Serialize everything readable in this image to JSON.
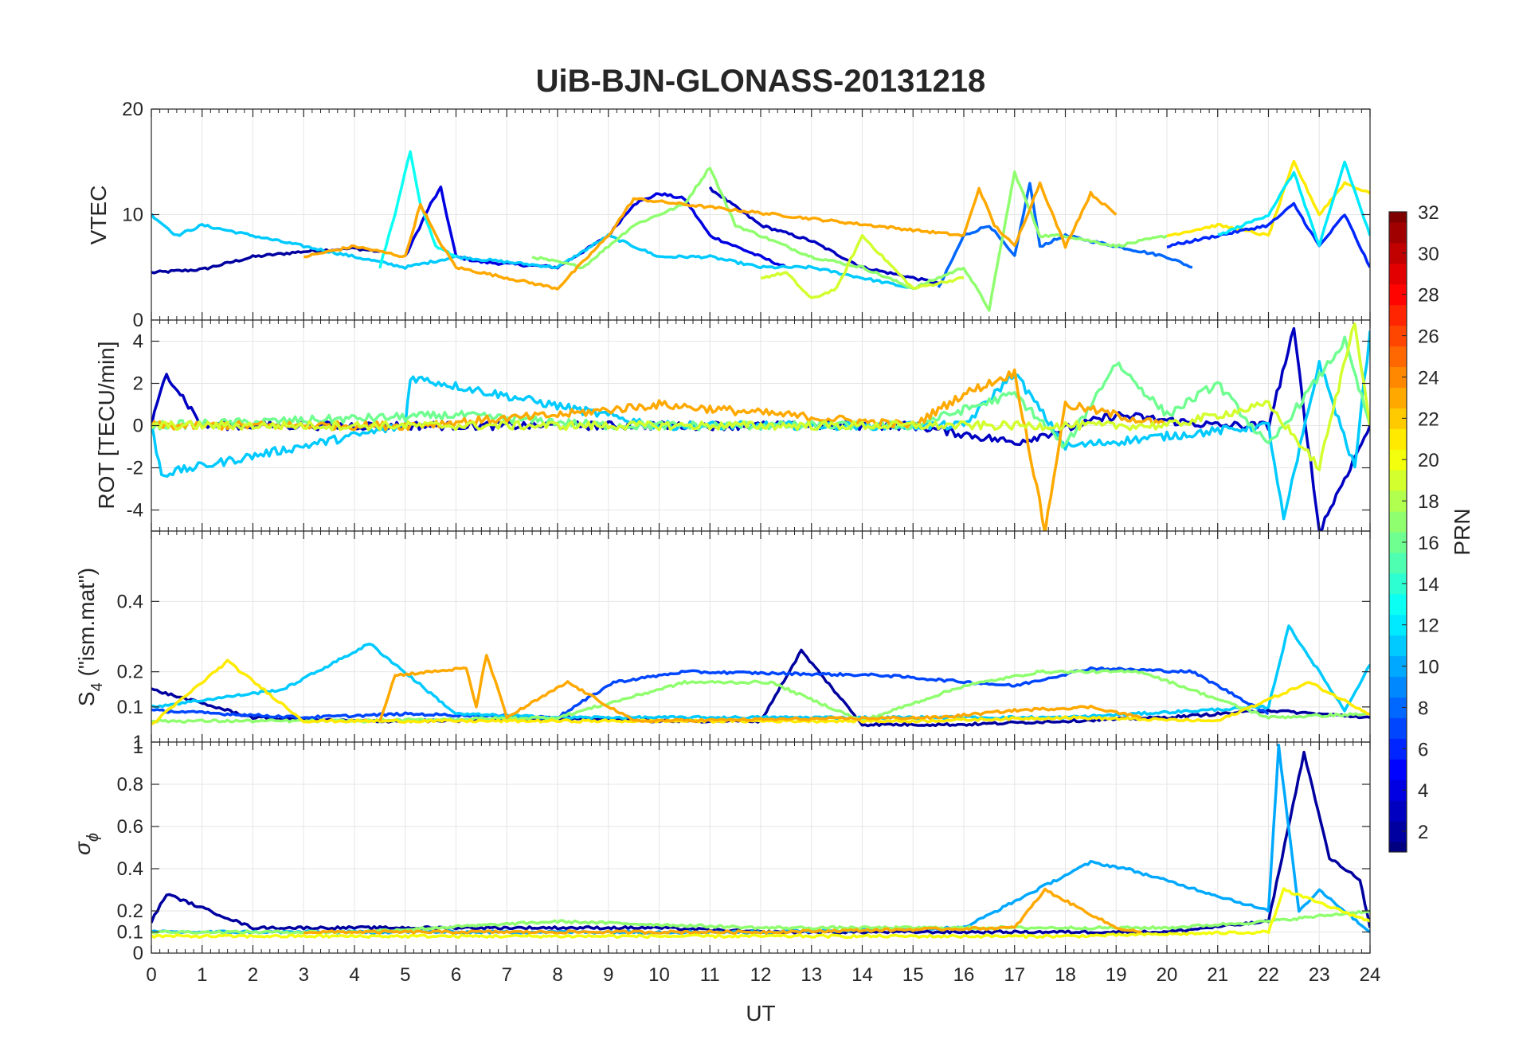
{
  "title": "UiB-BJN-GLONASS-20131218",
  "xlabel": "UT",
  "x_ticks": [
    "0",
    "1",
    "2",
    "3",
    "4",
    "5",
    "6",
    "7",
    "8",
    "9",
    "10",
    "11",
    "12",
    "13",
    "14",
    "15",
    "16",
    "17",
    "18",
    "19",
    "20",
    "21",
    "22",
    "23",
    "24"
  ],
  "panels": [
    {
      "ylabel": "VTEC",
      "yticks": [
        "0",
        "10",
        "20"
      ]
    },
    {
      "ylabel": "ROT [TECU/min]",
      "yticks": [
        "-4",
        "-2",
        "0",
        "2",
        "4"
      ]
    },
    {
      "ylabel_main": "S",
      "ylabel_sub": "4",
      "ylabel_rest": " (\"ism.mat\")",
      "yticks": [
        "0.1",
        "0.2",
        "0.4",
        "1"
      ]
    },
    {
      "ylabel_main": "σ",
      "ylabel_sub": "ϕ",
      "yticks": [
        "0",
        "0.1",
        "0.2",
        "0.4",
        "0.6",
        "0.8",
        "1"
      ]
    }
  ],
  "colorbar": {
    "label": "PRN",
    "ticks": [
      "2",
      "4",
      "6",
      "8",
      "10",
      "12",
      "14",
      "16",
      "18",
      "20",
      "22",
      "24",
      "26",
      "28",
      "30",
      "32"
    ]
  },
  "chart_data": {
    "type": "line",
    "title": "UiB-BJN-GLONASS-20131218",
    "xlabel": "UT",
    "xlim": [
      0,
      24
    ],
    "colorbar": {
      "label": "PRN",
      "range": [
        1,
        32
      ],
      "colormap": "jet"
    },
    "panels": [
      {
        "ylabel": "VTEC",
        "ylim": [
          0,
          20
        ],
        "series": [
          {
            "prn": 2,
            "x": [
              0,
              1,
              2,
              3,
              4,
              4.5
            ],
            "y": [
              4.5,
              4.8,
              6,
              6.5,
              6.8,
              6.5
            ]
          },
          {
            "prn": 4,
            "x": [
              5.0,
              5.5,
              5.7,
              6.0,
              6.5,
              8.0,
              9.0,
              9.5,
              10.0,
              10.5,
              11.0,
              12.0,
              12.5
            ],
            "y": [
              6,
              11,
              12.5,
              6,
              5.5,
              5,
              8,
              11,
              12,
              11.5,
              8,
              6,
              5
            ]
          },
          {
            "prn": 3,
            "x": [
              11.0,
              12.0,
              13.0,
              14.0,
              15.0,
              15.5
            ],
            "y": [
              12.5,
              9,
              7.5,
              5,
              4,
              3.5
            ]
          },
          {
            "prn": 8,
            "x": [
              15.5,
              16.0,
              16.5,
              17.0,
              17.3,
              17.5,
              18.0,
              19.0,
              20.0,
              20.5
            ],
            "y": [
              3,
              8,
              9,
              6,
              13,
              7,
              8,
              7,
              6,
              5
            ]
          },
          {
            "prn": 11,
            "x": [
              0,
              0.5,
              1,
              2,
              3,
              4,
              5,
              6,
              7,
              8,
              9,
              10,
              11,
              12,
              13,
              14,
              15
            ],
            "y": [
              10,
              8,
              9,
              8,
              7,
              6,
              5,
              6,
              5.5,
              5,
              8,
              6,
              6,
              5,
              5,
              4,
              3
            ]
          },
          {
            "prn": 13,
            "x": [
              4.5,
              4.8,
              5.1,
              5.3,
              5.6,
              6.0
            ],
            "y": [
              5,
              10,
              16,
              11,
              7,
              6
            ]
          },
          {
            "prn": 17,
            "x": [
              7.5,
              8.5,
              9.5,
              10.5,
              11.0,
              11.5,
              12.0,
              13.0,
              14.0,
              15.0,
              16.0,
              16.5,
              17.0,
              17.5,
              18.0,
              19.0,
              20.0
            ],
            "y": [
              6,
              5,
              9,
              11,
              14.5,
              9,
              8,
              6,
              5,
              3,
              5,
              1,
              14,
              8,
              8,
              7,
              8
            ]
          },
          {
            "prn": 19,
            "x": [
              12.0,
              12.5,
              13.0,
              13.5,
              14.0,
              15.0,
              16.0
            ],
            "y": [
              4,
              4.5,
              2,
              3,
              8,
              3,
              4
            ]
          },
          {
            "prn": 23,
            "x": [
              3,
              4,
              5,
              5.3,
              5.6,
              6,
              7,
              8,
              9,
              9.5,
              16.0,
              16.3,
              16.6,
              17.0,
              17.5,
              18.0,
              18.5,
              19.0
            ],
            "y": [
              6,
              7,
              6,
              11,
              8,
              5,
              4,
              3,
              8,
              11.5,
              8,
              12.5,
              9,
              7,
              13,
              7,
              12,
              10
            ]
          },
          {
            "prn": 21,
            "x": [
              20.0,
              21.0,
              22.0,
              22.5,
              23.0,
              23.5,
              24.0
            ],
            "y": [
              8,
              9,
              8,
              15,
              10,
              13,
              12
            ]
          },
          {
            "prn": 6,
            "x": [
              20.0,
              21.0,
              22.0,
              22.5,
              23.0,
              23.5,
              24.0
            ],
            "y": [
              7,
              8,
              9,
              11,
              7,
              10,
              5
            ]
          },
          {
            "prn": 12,
            "x": [
              21.0,
              22.0,
              22.5,
              23.0,
              23.5,
              24.0
            ],
            "y": [
              8,
              10,
              14,
              7,
              15,
              8
            ]
          }
        ]
      },
      {
        "ylabel": "ROT [TECU/min]",
        "ylim": [
          -5,
          5
        ],
        "series": [
          {
            "prn": 3,
            "x": [
              0,
              0.3,
              1,
              3,
              6,
              9,
              12,
              15,
              17,
              19,
              21,
              22,
              22.5,
              23,
              24
            ],
            "y": [
              0,
              2.5,
              0,
              0,
              0,
              0,
              0,
              0,
              -0.8,
              0.5,
              0,
              0,
              4.5,
              -5,
              0
            ]
          },
          {
            "prn": 11,
            "x": [
              0,
              0.2,
              5,
              5.1,
              10,
              16,
              17,
              18,
              22,
              22.3,
              23,
              23.7,
              24
            ],
            "y": [
              0,
              -2.3,
              0,
              2.3,
              0,
              0,
              2.5,
              -1,
              0,
              -4.5,
              3,
              -2,
              4.5
            ]
          },
          {
            "prn": 16,
            "x": [
              0,
              6,
              9,
              15,
              17,
              18,
              19,
              20,
              21,
              22,
              23.5,
              24
            ],
            "y": [
              0,
              0.5,
              0,
              0,
              1.5,
              -1,
              3,
              0.5,
              2,
              -1,
              4,
              0
            ]
          },
          {
            "prn": 23,
            "x": [
              0,
              5,
              8,
              10,
              15,
              16,
              17,
              17.6,
              18,
              19,
              20
            ],
            "y": [
              0,
              0,
              0.5,
              1,
              0,
              1.5,
              2.5,
              -5,
              1,
              0.5,
              0
            ]
          },
          {
            "prn": 19,
            "x": [
              0,
              5,
              10,
              15,
              20,
              22,
              23,
              23.7,
              24
            ],
            "y": [
              0,
              0,
              0,
              0,
              0,
              1,
              -2,
              5,
              0
            ]
          }
        ]
      },
      {
        "ylabel": "S4 (\"ism.mat\")",
        "ylim": [
          0,
          0.6
        ],
        "series": [
          {
            "prn": 2,
            "x": [
              0,
              2,
              4,
              6,
              8,
              10,
              12,
              12.8,
              14,
              16,
              18,
              20,
              22,
              24
            ],
            "y": [
              0.15,
              0.07,
              0.06,
              0.06,
              0.07,
              0.06,
              0.06,
              0.26,
              0.05,
              0.05,
              0.06,
              0.07,
              0.09,
              0.07
            ]
          },
          {
            "prn": 7,
            "x": [
              0,
              3,
              5,
              8,
              9.1,
              10.5,
              14.4,
              17,
              18.5,
              20.5,
              22
            ],
            "y": [
              0.09,
              0.07,
              0.08,
              0.07,
              0.17,
              0.2,
              0.19,
              0.16,
              0.21,
              0.2,
              0.08
            ]
          },
          {
            "prn": 11,
            "x": [
              0,
              2.6,
              4.3,
              6,
              8,
              12,
              16,
              18,
              22,
              22.4,
              23.5,
              24
            ],
            "y": [
              0.1,
              0.15,
              0.28,
              0.08,
              0.07,
              0.07,
              0.07,
              0.07,
              0.1,
              0.33,
              0.09,
              0.22
            ]
          },
          {
            "prn": 17,
            "x": [
              0,
              4,
              8,
              10.5,
              12.2,
              14,
              16,
              17.5,
              19.5,
              22,
              24
            ],
            "y": [
              0.06,
              0.06,
              0.07,
              0.17,
              0.17,
              0.06,
              0.16,
              0.2,
              0.2,
              0.07,
              0.08
            ]
          },
          {
            "prn": 21,
            "x": [
              0,
              1.5,
              3,
              6,
              9,
              12,
              15,
              18,
              21,
              22.8,
              24
            ],
            "y": [
              0.05,
              0.23,
              0.06,
              0.06,
              0.06,
              0.06,
              0.06,
              0.07,
              0.06,
              0.17,
              0.08
            ]
          },
          {
            "prn": 23,
            "x": [
              4.5,
              4.8,
              6.2,
              6.4,
              6.6,
              7.0,
              8.2,
              9.5,
              15.5,
              17,
              18.5,
              19.5
            ],
            "y": [
              0.06,
              0.19,
              0.21,
              0.1,
              0.25,
              0.07,
              0.17,
              0.06,
              0.07,
              0.09,
              0.1,
              0.07
            ]
          }
        ]
      },
      {
        "ylabel": "σφ",
        "ylim": [
          0,
          1
        ],
        "series": [
          {
            "prn": 2,
            "x": [
              0,
              0.3,
              2,
              4,
              6,
              8,
              10,
              12,
              14,
              16,
              18,
              20,
              22,
              22.7,
              23.2,
              23.8,
              24
            ],
            "y": [
              0.15,
              0.28,
              0.12,
              0.12,
              0.12,
              0.12,
              0.12,
              0.1,
              0.1,
              0.1,
              0.1,
              0.1,
              0.15,
              0.95,
              0.45,
              0.35,
              0.12
            ]
          },
          {
            "prn": 10,
            "x": [
              0,
              4,
              8,
              12,
              16,
              17.6,
              18.5,
              19.2,
              22,
              22.2,
              22.6,
              23,
              24
            ],
            "y": [
              0.1,
              0.1,
              0.1,
              0.1,
              0.12,
              0.32,
              0.43,
              0.4,
              0.2,
              0.98,
              0.2,
              0.3,
              0.1
            ]
          },
          {
            "prn": 17,
            "x": [
              0,
              4,
              8,
              12,
              16,
              20,
              22,
              24
            ],
            "y": [
              0.1,
              0.1,
              0.15,
              0.12,
              0.12,
              0.12,
              0.15,
              0.2
            ]
          },
          {
            "prn": 20,
            "x": [
              0,
              6,
              12,
              18,
              22,
              22.3,
              24
            ],
            "y": [
              0.08,
              0.08,
              0.08,
              0.08,
              0.1,
              0.3,
              0.15
            ]
          },
          {
            "prn": 23,
            "x": [
              3,
              6,
              9,
              12,
              17,
              17.6,
              19,
              19.5
            ],
            "y": [
              0.1,
              0.1,
              0.1,
              0.1,
              0.12,
              0.3,
              0.12,
              0.1
            ]
          }
        ]
      }
    ]
  }
}
